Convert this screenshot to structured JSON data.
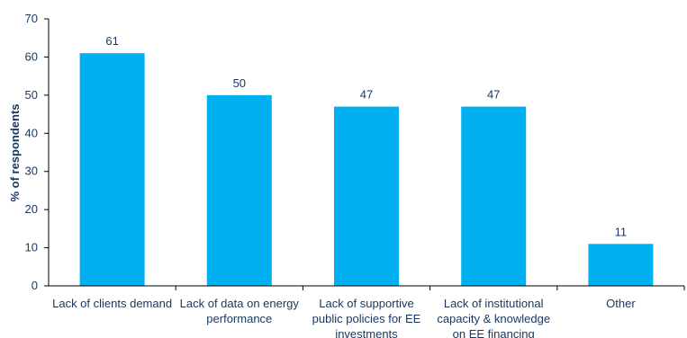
{
  "chart_data": {
    "type": "bar",
    "categories": [
      [
        "Lack of clients demand"
      ],
      [
        "Lack of data on energy",
        "performance"
      ],
      [
        "Lack of supportive",
        "public policies for EE",
        "investments"
      ],
      [
        "Lack of institutional",
        "capacity & knowledge",
        "on EE financing"
      ],
      [
        "Other"
      ]
    ],
    "values": [
      61,
      50,
      47,
      47,
      11
    ],
    "bar_labels": [
      "61",
      "50",
      "47",
      "47",
      "11"
    ],
    "yticks": [
      "0",
      "10",
      "20",
      "30",
      "40",
      "50",
      "60",
      "70"
    ],
    "ylim": [
      0,
      70
    ],
    "ylabel": "% of respondents",
    "xlabel": "",
    "title": "",
    "grid": false,
    "bar_color": "#00b0f0",
    "axis_color": "#000000",
    "text_color": "#17375e"
  }
}
